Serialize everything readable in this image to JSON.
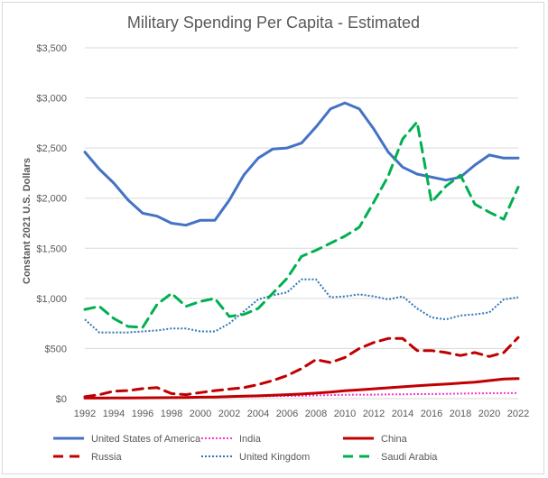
{
  "chart_data": {
    "type": "line",
    "title": "Military Spending Per Capita - Estimated",
    "xlabel": "",
    "ylabel": "Constant 2021 U.S. Dollars",
    "ylim": [
      0,
      3500
    ],
    "yticks": [
      "$0",
      "$500",
      "$1,000",
      "$1,500",
      "$2,000",
      "$2,500",
      "$3,000",
      "$3,500"
    ],
    "ytick_values": [
      0,
      500,
      1000,
      1500,
      2000,
      2500,
      3000,
      3500
    ],
    "x": [
      1992,
      1993,
      1994,
      1995,
      1996,
      1997,
      1998,
      1999,
      2000,
      2001,
      2002,
      2003,
      2004,
      2005,
      2006,
      2007,
      2008,
      2009,
      2010,
      2011,
      2012,
      2013,
      2014,
      2015,
      2016,
      2017,
      2018,
      2019,
      2020,
      2021,
      2022
    ],
    "xticks": [
      "1992",
      "1994",
      "1996",
      "1998",
      "2000",
      "2002",
      "2004",
      "2006",
      "2008",
      "2010",
      "2012",
      "2014",
      "2016",
      "2018",
      "2020",
      "2022"
    ],
    "xtick_values": [
      1992,
      1994,
      1996,
      1998,
      2000,
      2002,
      2004,
      2006,
      2008,
      2010,
      2012,
      2014,
      2016,
      2018,
      2020,
      2022
    ],
    "grid": true,
    "legend_position": "bottom",
    "series": [
      {
        "name": "United States of America",
        "color": "#4472c4",
        "style": "solid",
        "width": 3,
        "values": [
          2460,
          2290,
          2150,
          1980,
          1850,
          1820,
          1750,
          1730,
          1780,
          1780,
          1980,
          2230,
          2400,
          2490,
          2500,
          2550,
          2710,
          2890,
          2950,
          2890,
          2690,
          2460,
          2310,
          2240,
          2210,
          2180,
          2210,
          2330,
          2430,
          2400,
          2400
        ]
      },
      {
        "name": "India",
        "color": "#ff33cc",
        "style": "dotted",
        "width": 2,
        "values": [
          10,
          10,
          10,
          10,
          10,
          12,
          13,
          14,
          15,
          17,
          18,
          20,
          22,
          25,
          27,
          28,
          32,
          35,
          38,
          40,
          40,
          42,
          43,
          45,
          46,
          48,
          50,
          52,
          54,
          55,
          56
        ]
      },
      {
        "name": "China",
        "color": "#c00000",
        "style": "solid",
        "width": 3,
        "values": [
          5,
          5,
          6,
          7,
          8,
          9,
          10,
          12,
          14,
          16,
          20,
          24,
          28,
          33,
          40,
          46,
          55,
          66,
          78,
          88,
          98,
          108,
          118,
          128,
          138,
          145,
          155,
          165,
          180,
          195,
          200
        ]
      },
      {
        "name": "Russia",
        "color": "#c00000",
        "style": "dashed",
        "width": 3,
        "values": [
          20,
          40,
          75,
          80,
          100,
          110,
          50,
          40,
          60,
          80,
          95,
          110,
          140,
          180,
          230,
          300,
          390,
          360,
          410,
          500,
          560,
          600,
          600,
          480,
          480,
          460,
          430,
          460,
          420,
          460,
          610
        ]
      },
      {
        "name": "United Kingdom",
        "color": "#2e75b6",
        "style": "dotted",
        "width": 2,
        "values": [
          790,
          660,
          660,
          660,
          670,
          680,
          700,
          700,
          670,
          670,
          750,
          870,
          990,
          1030,
          1060,
          1190,
          1190,
          1010,
          1020,
          1040,
          1020,
          990,
          1020,
          900,
          810,
          790,
          830,
          840,
          860,
          990,
          1010
        ]
      },
      {
        "name": "Saudi Arabia",
        "color": "#00b050",
        "style": "dashed",
        "width": 3,
        "values": [
          890,
          920,
          800,
          720,
          710,
          940,
          1050,
          920,
          970,
          1000,
          820,
          840,
          900,
          1050,
          1200,
          1420,
          1480,
          1550,
          1620,
          1710,
          1960,
          2220,
          2590,
          2760,
          1960,
          2120,
          2230,
          1940,
          1860,
          1790,
          2110
        ]
      }
    ]
  }
}
